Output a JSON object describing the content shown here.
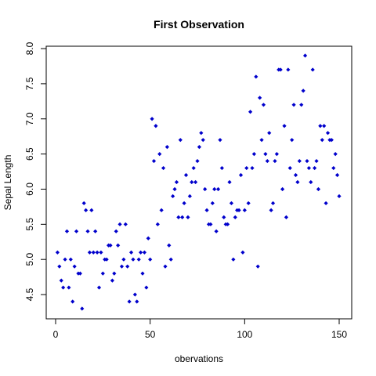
{
  "chart_data": {
    "type": "scatter",
    "title": "First Observation",
    "xlabel": "obervations",
    "ylabel": "Sepal Length",
    "xlim": [
      0,
      150
    ],
    "ylim": [
      4.3,
      7.9
    ],
    "x_ticks": [
      0,
      50,
      100,
      150
    ],
    "x_tick_labels": [
      "0",
      "50",
      "100",
      "150"
    ],
    "y_ticks": [
      4.5,
      5.0,
      5.5,
      6.0,
      6.5,
      7.0,
      7.5,
      8.0
    ],
    "y_tick_labels": [
      "4.5",
      "5.0",
      "5.5",
      "6.0",
      "6.5",
      "7.0",
      "7.5",
      "8.0"
    ],
    "grid": false,
    "point_color": "#0000CC",
    "series": [
      {
        "x": [
          1,
          2,
          3,
          4,
          5,
          6,
          7,
          8,
          9,
          10,
          11,
          12,
          13,
          14,
          15,
          16,
          17,
          18,
          19,
          20,
          21,
          22,
          23,
          24,
          25,
          26,
          27,
          28,
          29,
          30,
          31,
          32,
          33,
          34,
          35,
          36,
          37,
          38,
          39,
          40,
          41,
          42,
          43,
          44,
          45,
          46,
          47,
          48,
          49,
          50,
          51,
          52,
          53,
          54,
          55,
          56,
          57,
          58,
          59,
          60,
          61,
          62,
          63,
          64,
          65,
          66,
          67,
          68,
          69,
          70,
          71,
          72,
          73,
          74,
          75,
          76,
          77,
          78,
          79,
          80,
          81,
          82,
          83,
          84,
          85,
          86,
          87,
          88,
          89,
          90,
          91,
          92,
          93,
          94,
          95,
          96,
          97,
          98,
          99,
          100,
          101,
          102,
          103,
          104,
          105,
          106,
          107,
          108,
          109,
          110,
          111,
          112,
          113,
          114,
          115,
          116,
          117,
          118,
          119,
          120,
          121,
          122,
          123,
          124,
          125,
          126,
          127,
          128,
          129,
          130,
          131,
          132,
          133,
          134,
          135,
          136,
          137,
          138,
          139,
          140,
          141,
          142,
          143,
          144,
          145,
          146,
          147,
          148,
          149,
          150
        ],
        "y": [
          5.1,
          4.9,
          4.7,
          4.6,
          5.0,
          5.4,
          4.6,
          5.0,
          4.4,
          4.9,
          5.4,
          4.8,
          4.8,
          4.3,
          5.8,
          5.7,
          5.4,
          5.1,
          5.7,
          5.1,
          5.4,
          5.1,
          4.6,
          5.1,
          4.8,
          5.0,
          5.0,
          5.2,
          5.2,
          4.7,
          4.8,
          5.4,
          5.2,
          5.5,
          4.9,
          5.0,
          5.5,
          4.9,
          4.4,
          5.1,
          5.0,
          4.5,
          4.4,
          5.0,
          5.1,
          4.8,
          5.1,
          4.6,
          5.3,
          5.0,
          7.0,
          6.4,
          6.9,
          5.5,
          6.5,
          5.7,
          6.3,
          4.9,
          6.6,
          5.2,
          5.0,
          5.9,
          6.0,
          6.1,
          5.6,
          6.7,
          5.6,
          5.8,
          6.2,
          5.6,
          5.9,
          6.1,
          6.3,
          6.1,
          6.4,
          6.6,
          6.8,
          6.7,
          6.0,
          5.7,
          5.5,
          5.5,
          5.8,
          6.0,
          5.4,
          6.0,
          6.7,
          6.3,
          5.6,
          5.5,
          5.5,
          6.1,
          5.8,
          5.0,
          5.6,
          5.7,
          5.7,
          6.2,
          5.1,
          5.7,
          6.3,
          5.8,
          7.1,
          6.3,
          6.5,
          7.6,
          4.9,
          7.3,
          6.7,
          7.2,
          6.5,
          6.4,
          6.8,
          5.7,
          5.8,
          6.4,
          6.5,
          7.7,
          7.7,
          6.0,
          6.9,
          5.6,
          7.7,
          6.3,
          6.7,
          7.2,
          6.2,
          6.1,
          6.4,
          7.2,
          7.4,
          7.9,
          6.4,
          6.3,
          6.1,
          7.7,
          6.3,
          6.4,
          6.0,
          6.9,
          6.7,
          6.9,
          5.8,
          6.8,
          6.7,
          6.7,
          6.3,
          6.5,
          6.2,
          5.9
        ]
      }
    ]
  }
}
